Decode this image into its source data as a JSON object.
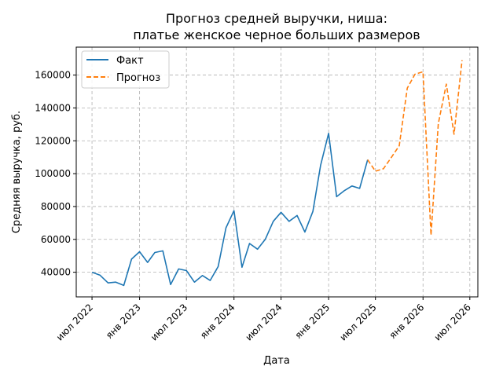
{
  "chart_data": {
    "type": "line",
    "title_lines": [
      "Прогноз средней выручки, ниша:",
      "платье женское черное больших размеров"
    ],
    "xlabel": "Дата",
    "ylabel": "Средняя выручка, руб.",
    "xlim": [
      "2022-05-01",
      "2026-08-01"
    ],
    "ylim": [
      25000,
      177000
    ],
    "yticks": [
      40000,
      60000,
      80000,
      100000,
      120000,
      140000,
      160000
    ],
    "xticks": [
      {
        "date": "2022-07-01",
        "label": "июл 2022"
      },
      {
        "date": "2023-01-01",
        "label": "янв 2023"
      },
      {
        "date": "2023-07-01",
        "label": "июл 2023"
      },
      {
        "date": "2024-01-01",
        "label": "янв 2024"
      },
      {
        "date": "2024-07-01",
        "label": "июл 2024"
      },
      {
        "date": "2025-01-01",
        "label": "янв 2025"
      },
      {
        "date": "2025-07-01",
        "label": "июл 2025"
      },
      {
        "date": "2026-01-01",
        "label": "янв 2026"
      },
      {
        "date": "2026-07-01",
        "label": "июл 2026"
      }
    ],
    "grid": true,
    "legend_position": "top-left",
    "series": [
      {
        "name": "Факт",
        "color": "#1f77b4",
        "style": "solid",
        "x": [
          "2022-07-01",
          "2022-08-01",
          "2022-09-01",
          "2022-10-01",
          "2022-11-01",
          "2022-12-01",
          "2023-01-01",
          "2023-02-01",
          "2023-03-01",
          "2023-04-01",
          "2023-05-01",
          "2023-06-01",
          "2023-07-01",
          "2023-08-01",
          "2023-09-01",
          "2023-10-01",
          "2023-11-01",
          "2023-12-01",
          "2024-01-01",
          "2024-02-01",
          "2024-03-01",
          "2024-04-01",
          "2024-05-01",
          "2024-06-01",
          "2024-07-01",
          "2024-08-01",
          "2024-09-01",
          "2024-10-01",
          "2024-11-01",
          "2024-12-01",
          "2025-01-01",
          "2025-02-01",
          "2025-03-01",
          "2025-04-01",
          "2025-05-01",
          "2025-06-01"
        ],
        "values": [
          40000,
          38200,
          33500,
          34000,
          32000,
          48000,
          52500,
          46000,
          52000,
          53000,
          32500,
          42000,
          41000,
          34000,
          38000,
          35000,
          43500,
          67000,
          77500,
          43000,
          57500,
          54000,
          60000,
          71000,
          76500,
          71000,
          74500,
          64500,
          77000,
          105000,
          124500,
          86000,
          89500,
          92500,
          91000,
          108500
        ]
      },
      {
        "name": "Прогноз",
        "color": "#ff7f0e",
        "style": "dashed",
        "x": [
          "2025-06-01",
          "2025-07-01",
          "2025-08-01",
          "2025-09-01",
          "2025-10-01",
          "2025-11-01",
          "2025-12-01",
          "2026-01-01",
          "2026-02-01",
          "2026-03-01",
          "2026-04-01",
          "2026-05-01",
          "2026-06-01"
        ],
        "values": [
          108500,
          101500,
          103000,
          110000,
          117000,
          152000,
          160500,
          162000,
          62500,
          130500,
          154500,
          124000,
          169000
        ]
      }
    ]
  }
}
